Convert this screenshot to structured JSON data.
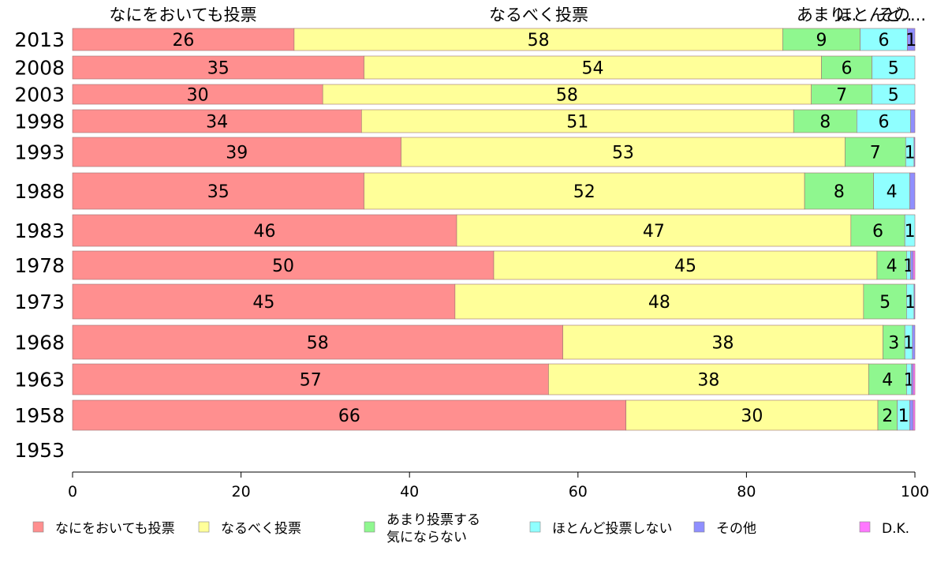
{
  "chart_data": {
    "type": "bar",
    "orientation": "horizontal",
    "stacked": true,
    "categories": [
      "2013",
      "2008",
      "2003",
      "1998",
      "1993",
      "1988",
      "1983",
      "1978",
      "1973",
      "1968",
      "1963",
      "1958",
      "1953"
    ],
    "series": [
      {
        "name": "なにをおいても投票",
        "color": "#ff8f8f",
        "values": [
          26.3,
          34.6,
          29.7,
          34.3,
          39.0,
          34.6,
          45.6,
          50.0,
          45.4,
          58.2,
          56.5,
          65.7,
          null
        ]
      },
      {
        "name": "なるべく投票",
        "color": "#ffff99",
        "values": [
          58.0,
          54.3,
          58.0,
          51.3,
          52.7,
          52.3,
          46.8,
          45.5,
          48.5,
          38.0,
          38.0,
          29.9,
          null
        ]
      },
      {
        "name": "あまり投票する気にならない",
        "color": "#8ff78f",
        "values": [
          9.2,
          6.0,
          7.2,
          7.5,
          7.2,
          8.2,
          6.4,
          3.5,
          5.1,
          2.6,
          4.5,
          2.3,
          null
        ]
      },
      {
        "name": "ほとんど投票しない",
        "color": "#8fffff",
        "values": [
          5.6,
          5.1,
          5.1,
          6.4,
          1.0,
          4.3,
          1.2,
          0.5,
          0.9,
          0.9,
          0.6,
          1.5,
          null
        ]
      },
      {
        "name": "その他",
        "color": "#8f8fff",
        "values": [
          0.9,
          0.0,
          0.0,
          0.5,
          0.1,
          0.6,
          0.0,
          0.3,
          0.1,
          0.3,
          0.2,
          0.4,
          null
        ]
      },
      {
        "name": "D.K.",
        "color": "#ff77ff",
        "values": [
          0.0,
          0.0,
          0.0,
          0.0,
          0.0,
          0.0,
          0.0,
          0.2,
          0.0,
          0.0,
          0.2,
          0.2,
          null
        ]
      }
    ],
    "bar_labels": [
      [
        "26",
        "58",
        "9",
        "6",
        "1",
        ""
      ],
      [
        "35",
        "54",
        "6",
        "5",
        "",
        ""
      ],
      [
        "30",
        "58",
        "7",
        "5",
        "",
        ""
      ],
      [
        "34",
        "51",
        "8",
        "6",
        "",
        ""
      ],
      [
        "39",
        "53",
        "7",
        "1",
        "",
        ""
      ],
      [
        "35",
        "52",
        "8",
        "4",
        "",
        ""
      ],
      [
        "46",
        "47",
        "6",
        "1",
        "",
        ""
      ],
      [
        "50",
        "45",
        "4",
        "1",
        "",
        ""
      ],
      [
        "45",
        "48",
        "5",
        "1",
        "",
        ""
      ],
      [
        "58",
        "38",
        "3",
        "1",
        "",
        ""
      ],
      [
        "57",
        "38",
        "4",
        "1",
        "",
        ""
      ],
      [
        "66",
        "30",
        "2",
        "1",
        "",
        ""
      ],
      [
        "",
        "",
        "",
        "",
        "",
        ""
      ]
    ],
    "top_labels": [
      "なにをおいても投票",
      "なるべく投票",
      "あまり..",
      "ほとんど..",
      "その..."
    ],
    "xlim": [
      0,
      100
    ],
    "xticks": [
      "0",
      "20",
      "40",
      "60",
      "80",
      "100"
    ],
    "legend": [
      {
        "label": "なにをおいても投票",
        "color": "#ff8f8f"
      },
      {
        "label": "なるべく投票",
        "color": "#ffff99"
      },
      {
        "label": "あまり投票する\n気にならない",
        "color": "#8ff78f"
      },
      {
        "label": "ほとんど投票しない",
        "color": "#8fffff"
      },
      {
        "label": "その他",
        "color": "#8f8fff"
      },
      {
        "label": "D.K.",
        "color": "#ff77ff"
      }
    ],
    "legend_position": "bottom",
    "grid": false
  }
}
